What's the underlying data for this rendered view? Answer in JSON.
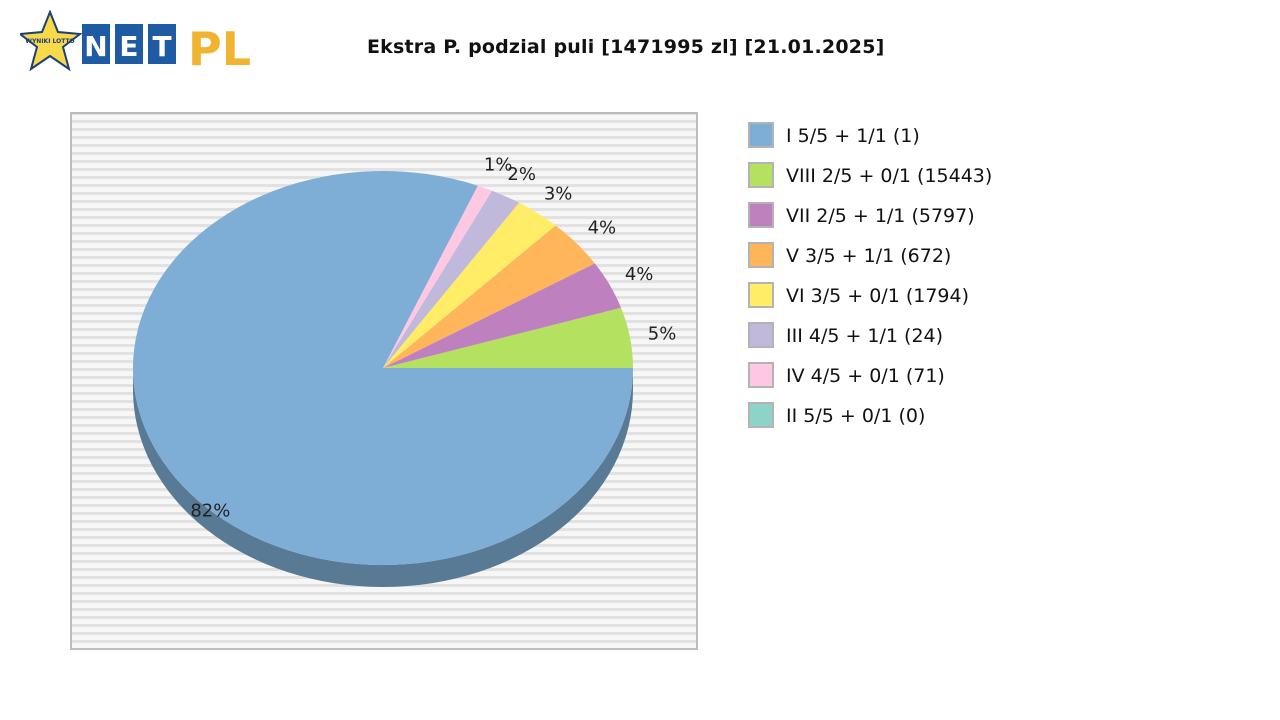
{
  "brand": {
    "star_text": "WYNIKI LOTTO",
    "letters": [
      "N",
      "E",
      "T"
    ],
    "suffix": "PL"
  },
  "chart_data": {
    "type": "pie",
    "title": "Ekstra P. podzial puli [1471995 zl] [21.01.2025]",
    "slices": [
      {
        "legend": "I 5/5 + 1/1 (1)",
        "percent": 82,
        "label": "82%",
        "color": "#7eaed5"
      },
      {
        "legend": "VIII 2/5 + 0/1 (15443)",
        "percent": 5,
        "label": "5%",
        "color": "#b5e160"
      },
      {
        "legend": "VII 2/5 + 1/1 (5797)",
        "percent": 4,
        "label": "4%",
        "color": "#bf80c0"
      },
      {
        "legend": "V 3/5 + 1/1 (672)",
        "percent": 4,
        "label": "4%",
        "color": "#ffb55a"
      },
      {
        "legend": "VI 3/5 + 0/1 (1794)",
        "percent": 3,
        "label": "3%",
        "color": "#ffec67"
      },
      {
        "legend": "III 4/5 + 1/1 (24)",
        "percent": 2,
        "label": "2%",
        "color": "#c0b9db"
      },
      {
        "legend": "IV 4/5 + 0/1 (71)",
        "percent": 1,
        "label": "1%",
        "color": "#ffc8e2"
      },
      {
        "legend": "II 5/5 + 0/1 (0)",
        "percent": 0,
        "label": "",
        "color": "#8dd3c7"
      }
    ],
    "legend_placement": "right",
    "style": "3d-pie",
    "background": "horizontal-stripes"
  }
}
